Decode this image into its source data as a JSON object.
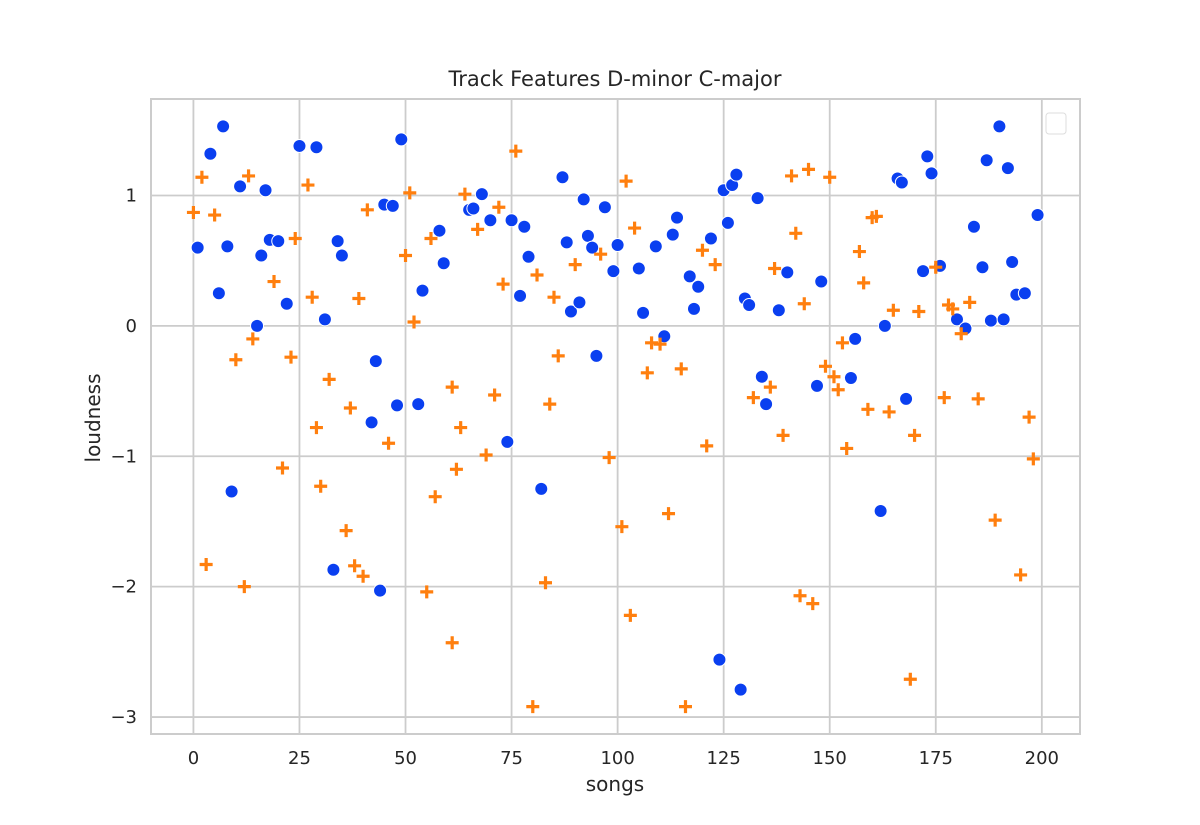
{
  "chart_data": {
    "type": "scatter",
    "title": "Track Features D-minor C-major",
    "xlabel": "songs",
    "ylabel": "loudness",
    "xlim": [
      -10,
      209
    ],
    "ylim": [
      -3.13,
      1.74
    ],
    "xticks": [
      0,
      25,
      50,
      75,
      100,
      125,
      150,
      175,
      200
    ],
    "yticks": [
      -3,
      -2,
      -1,
      0,
      1
    ],
    "ytick_labels": [
      "−3",
      "−2",
      "−1",
      "0",
      "1"
    ],
    "grid": true,
    "legend": {
      "position": "top-right",
      "entries": []
    },
    "series": [
      {
        "marker": "circle",
        "color": "#0a3ff0",
        "points": [
          [
            1,
            0.6
          ],
          [
            4,
            1.32
          ],
          [
            6,
            0.25
          ],
          [
            7,
            1.53
          ],
          [
            8,
            0.61
          ],
          [
            9,
            -1.27
          ],
          [
            11,
            1.07
          ],
          [
            15,
            0.0
          ],
          [
            16,
            0.54
          ],
          [
            17,
            1.04
          ],
          [
            18,
            0.66
          ],
          [
            20,
            0.65
          ],
          [
            22,
            0.17
          ],
          [
            25,
            1.38
          ],
          [
            29,
            1.37
          ],
          [
            31,
            0.05
          ],
          [
            33,
            -1.87
          ],
          [
            34,
            0.65
          ],
          [
            35,
            0.54
          ],
          [
            42,
            -0.74
          ],
          [
            43,
            -0.27
          ],
          [
            44,
            -2.03
          ],
          [
            45,
            0.93
          ],
          [
            47,
            0.92
          ],
          [
            48,
            -0.61
          ],
          [
            49,
            1.43
          ],
          [
            53,
            -0.6
          ],
          [
            54,
            0.27
          ],
          [
            58,
            0.73
          ],
          [
            59,
            0.48
          ],
          [
            65,
            0.89
          ],
          [
            66,
            0.9
          ],
          [
            68,
            1.01
          ],
          [
            70,
            0.81
          ],
          [
            74,
            -0.89
          ],
          [
            75,
            0.81
          ],
          [
            77,
            0.23
          ],
          [
            78,
            0.76
          ],
          [
            79,
            0.53
          ],
          [
            82,
            -1.25
          ],
          [
            87,
            1.14
          ],
          [
            88,
            0.64
          ],
          [
            89,
            0.11
          ],
          [
            91,
            0.18
          ],
          [
            92,
            0.97
          ],
          [
            93,
            0.69
          ],
          [
            94,
            0.6
          ],
          [
            95,
            -0.23
          ],
          [
            97,
            0.91
          ],
          [
            99,
            0.42
          ],
          [
            100,
            0.62
          ],
          [
            105,
            0.44
          ],
          [
            106,
            0.1
          ],
          [
            109,
            0.61
          ],
          [
            111,
            -0.08
          ],
          [
            113,
            0.7
          ],
          [
            114,
            0.83
          ],
          [
            117,
            0.38
          ],
          [
            118,
            0.13
          ],
          [
            119,
            0.3
          ],
          [
            122,
            0.67
          ],
          [
            124,
            -2.56
          ],
          [
            125,
            1.04
          ],
          [
            126,
            0.79
          ],
          [
            127,
            1.08
          ],
          [
            128,
            1.16
          ],
          [
            129,
            -2.79
          ],
          [
            130,
            0.21
          ],
          [
            131,
            0.16
          ],
          [
            133,
            0.98
          ],
          [
            134,
            -0.39
          ],
          [
            135,
            -0.6
          ],
          [
            138,
            0.12
          ],
          [
            140,
            0.41
          ],
          [
            147,
            -0.46
          ],
          [
            148,
            0.34
          ],
          [
            155,
            -0.4
          ],
          [
            156,
            -0.1
          ],
          [
            162,
            -1.42
          ],
          [
            163,
            0.0
          ],
          [
            166,
            1.13
          ],
          [
            167,
            1.1
          ],
          [
            168,
            -0.56
          ],
          [
            172,
            0.42
          ],
          [
            173,
            1.3
          ],
          [
            174,
            1.17
          ],
          [
            176,
            0.46
          ],
          [
            180,
            0.05
          ],
          [
            182,
            -0.02
          ],
          [
            184,
            0.76
          ],
          [
            186,
            0.45
          ],
          [
            187,
            1.27
          ],
          [
            188,
            0.04
          ],
          [
            190,
            1.53
          ],
          [
            191,
            0.05
          ],
          [
            192,
            1.21
          ],
          [
            193,
            0.49
          ],
          [
            194,
            0.24
          ],
          [
            196,
            0.25
          ],
          [
            199,
            0.85
          ]
        ]
      },
      {
        "marker": "plus",
        "color": "#ff7f0e",
        "points": [
          [
            0,
            0.87
          ],
          [
            2,
            1.14
          ],
          [
            3,
            -1.83
          ],
          [
            5,
            0.85
          ],
          [
            10,
            -0.26
          ],
          [
            12,
            -2.0
          ],
          [
            13,
            1.15
          ],
          [
            14,
            -0.1
          ],
          [
            21,
            -1.09
          ],
          [
            23,
            -0.24
          ],
          [
            24,
            0.67
          ],
          [
            19,
            0.34
          ],
          [
            27,
            1.08
          ],
          [
            28,
            0.22
          ],
          [
            30,
            -1.23
          ],
          [
            29,
            -0.78
          ],
          [
            32,
            -0.41
          ],
          [
            36,
            -1.57
          ],
          [
            37,
            -0.63
          ],
          [
            38,
            -1.84
          ],
          [
            39,
            0.21
          ],
          [
            40,
            -1.92
          ],
          [
            41,
            0.89
          ],
          [
            46,
            -0.9
          ],
          [
            50,
            0.54
          ],
          [
            51,
            1.02
          ],
          [
            52,
            0.03
          ],
          [
            55,
            -2.04
          ],
          [
            56,
            0.67
          ],
          [
            57,
            -1.31
          ],
          [
            61,
            -0.47
          ],
          [
            61,
            -2.43
          ],
          [
            62,
            -1.1
          ],
          [
            63,
            -0.78
          ],
          [
            64,
            1.01
          ],
          [
            67,
            0.74
          ],
          [
            69,
            -0.99
          ],
          [
            71,
            -0.53
          ],
          [
            72,
            0.91
          ],
          [
            73,
            0.32
          ],
          [
            76,
            1.34
          ],
          [
            80,
            -2.92
          ],
          [
            81,
            0.39
          ],
          [
            83,
            -1.97
          ],
          [
            84,
            -0.6
          ],
          [
            85,
            0.22
          ],
          [
            86,
            -0.23
          ],
          [
            90,
            0.47
          ],
          [
            96,
            0.55
          ],
          [
            98,
            -1.01
          ],
          [
            101,
            -1.54
          ],
          [
            102,
            1.11
          ],
          [
            103,
            -2.22
          ],
          [
            104,
            0.75
          ],
          [
            107,
            -0.36
          ],
          [
            108,
            -0.13
          ],
          [
            110,
            -0.14
          ],
          [
            112,
            -1.44
          ],
          [
            115,
            -0.33
          ],
          [
            116,
            -2.92
          ],
          [
            120,
            0.58
          ],
          [
            121,
            -0.92
          ],
          [
            123,
            0.47
          ],
          [
            132,
            -0.55
          ],
          [
            136,
            -0.47
          ],
          [
            137,
            0.44
          ],
          [
            139,
            -0.84
          ],
          [
            141,
            1.15
          ],
          [
            142,
            0.71
          ],
          [
            143,
            -2.07
          ],
          [
            144,
            0.17
          ],
          [
            145,
            1.2
          ],
          [
            146,
            -2.13
          ],
          [
            149,
            -0.31
          ],
          [
            150,
            1.14
          ],
          [
            151,
            -0.39
          ],
          [
            152,
            -0.49
          ],
          [
            153,
            -0.13
          ],
          [
            154,
            -0.94
          ],
          [
            157,
            0.57
          ],
          [
            158,
            0.33
          ],
          [
            159,
            -0.64
          ],
          [
            160,
            0.83
          ],
          [
            161,
            0.84
          ],
          [
            164,
            -0.66
          ],
          [
            165,
            0.12
          ],
          [
            169,
            -2.71
          ],
          [
            170,
            -0.84
          ],
          [
            171,
            0.11
          ],
          [
            175,
            0.45
          ],
          [
            177,
            -0.55
          ],
          [
            178,
            0.16
          ],
          [
            179,
            0.13
          ],
          [
            181,
            -0.06
          ],
          [
            183,
            0.18
          ],
          [
            185,
            -0.56
          ],
          [
            189,
            -1.49
          ],
          [
            195,
            -1.91
          ],
          [
            197,
            -0.7
          ],
          [
            198,
            -1.02
          ]
        ]
      }
    ]
  }
}
